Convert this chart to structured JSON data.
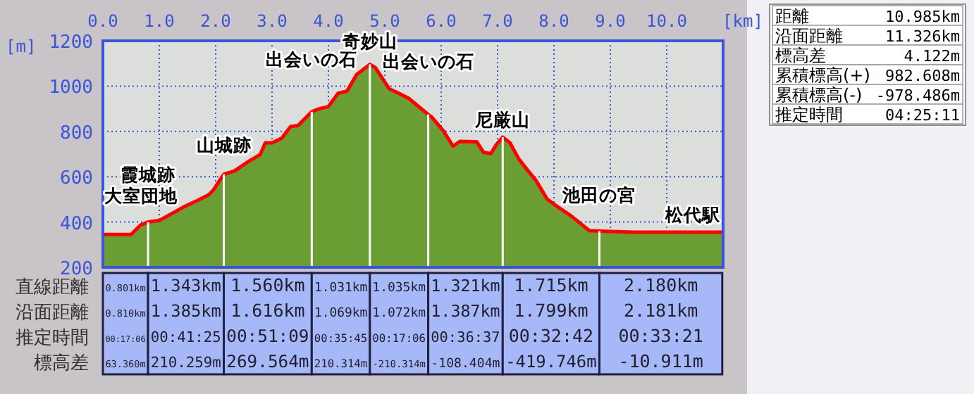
{
  "chart_data": [
    {
      "type": "area",
      "xlabel": "[km]",
      "ylabel": "[m]",
      "xlim": [
        0,
        11
      ],
      "ylim": [
        200,
        1200
      ],
      "xticks": [
        {
          "value": 0,
          "label": "0.0"
        },
        {
          "value": 1,
          "label": "1.0"
        },
        {
          "value": 2,
          "label": "2.0"
        },
        {
          "value": 3,
          "label": "3.0"
        },
        {
          "value": 4,
          "label": "4.0"
        },
        {
          "value": 5,
          "label": "5.0"
        },
        {
          "value": 6,
          "label": "6.0"
        },
        {
          "value": 7,
          "label": "7.0"
        },
        {
          "value": 8,
          "label": "8.0"
        },
        {
          "value": 9,
          "label": "9.0"
        },
        {
          "value": 10,
          "label": "10.0"
        }
      ],
      "yticks": [
        200,
        400,
        600,
        800,
        1000,
        1200
      ],
      "grid": true,
      "marker": "none",
      "x": [
        0,
        0.5,
        0.67,
        0.801,
        1.0,
        1.46,
        1.67,
        1.88,
        1.96,
        2.144,
        2.33,
        2.58,
        2.79,
        2.88,
        3.0,
        3.17,
        3.33,
        3.46,
        3.704,
        3.83,
        4.0,
        4.17,
        4.33,
        4.5,
        4.735,
        4.83,
        5.08,
        5.25,
        5.42,
        5.77,
        5.83,
        6.04,
        6.21,
        6.33,
        6.63,
        6.75,
        6.88,
        6.97,
        7.091,
        7.22,
        7.38,
        7.51,
        7.68,
        7.88,
        8.05,
        8.3,
        8.63,
        8.806,
        9.42,
        10.985
      ],
      "series": [
        {
          "type": "area",
          "color": "#6a9e34",
          "values": [
            345,
            345,
            387,
            400,
            407,
            470,
            494,
            521,
            542,
            611,
            625,
            667,
            698,
            750,
            750,
            770,
            822,
            826,
            887,
            899,
            910,
            968,
            978,
            1051,
            1096,
            1082,
            988,
            968,
            947,
            875,
            864,
            802,
            735,
            756,
            754,
            708,
            702,
            739,
            775,
            750,
            677,
            636,
            584,
            501,
            470,
            428,
            362,
            360,
            355,
            355
          ]
        },
        {
          "type": "line",
          "color": "#ff0000",
          "line_style": "solid",
          "values": [
            345,
            345,
            387,
            400,
            407,
            470,
            494,
            521,
            542,
            611,
            625,
            667,
            698,
            750,
            750,
            770,
            822,
            826,
            887,
            899,
            910,
            968,
            978,
            1051,
            1096,
            1082,
            988,
            968,
            947,
            875,
            864,
            802,
            735,
            756,
            754,
            708,
            702,
            739,
            775,
            750,
            677,
            636,
            584,
            501,
            470,
            428,
            362,
            360,
            355,
            355
          ]
        }
      ],
      "ref_lines": [
        {
          "axis": "x",
          "value": 0.801,
          "color": "#ffffff"
        },
        {
          "axis": "x",
          "value": 2.144,
          "color": "#ffffff"
        },
        {
          "axis": "x",
          "value": 3.704,
          "color": "#ffffff"
        },
        {
          "axis": "x",
          "value": 4.735,
          "color": "#ffffff"
        },
        {
          "axis": "x",
          "value": 5.77,
          "color": "#ffffff"
        },
        {
          "axis": "x",
          "value": 7.091,
          "color": "#ffffff"
        },
        {
          "axis": "x",
          "value": 8.806,
          "color": "#ffffff"
        }
      ],
      "annotations": [
        {
          "text": "大室団地",
          "x": 0,
          "y": 345
        },
        {
          "text": "霞城跡",
          "x": 0.801,
          "y": 400
        },
        {
          "text": "山城跡",
          "x": 2.144,
          "y": 611
        },
        {
          "text": "出会いの石",
          "x": 3.704,
          "y": 887
        },
        {
          "text": "奇妙山",
          "x": 4.735,
          "y": 1096
        },
        {
          "text": "出会いの石",
          "x": 5.77,
          "y": 875
        },
        {
          "text": "尼厳山",
          "x": 7.091,
          "y": 775
        },
        {
          "text": "池田の宮",
          "x": 8.806,
          "y": 360
        },
        {
          "text": "松代駅",
          "x": 10.985,
          "y": 355
        }
      ]
    },
    {
      "type": "other",
      "annotations": [
        "直線距離",
        "沿面距離",
        "推定時間",
        "標高差",
        "0.801km",
        "0.810km",
        "00:17:06",
        "63.360m",
        "1.343km",
        "1.385km",
        "00:41:25",
        "210.259m",
        "1.560km",
        "1.616km",
        "00:51:09",
        "269.564m",
        "1.031km",
        "1.069km",
        "00:35:45",
        "210.314m",
        "1.035km",
        "1.072km",
        "00:17:06",
        "-210.314m",
        "1.321km",
        "1.387km",
        "00:36:37",
        "-108.404m",
        "1.715km",
        "1.799km",
        "00:32:42",
        "-419.746m",
        "2.180km",
        "2.181km",
        "00:33:21",
        "-10.911m"
      ]
    },
    {
      "type": "other",
      "annotations": [
        "距離",
        "10.985km",
        "沿面距離",
        "11.326km",
        "標高差",
        "4.122m",
        "累積標高(+)",
        "982.608m",
        "累積標高(-)",
        "-978.486m",
        "推定時間",
        "04:25:11"
      ]
    }
  ]
}
